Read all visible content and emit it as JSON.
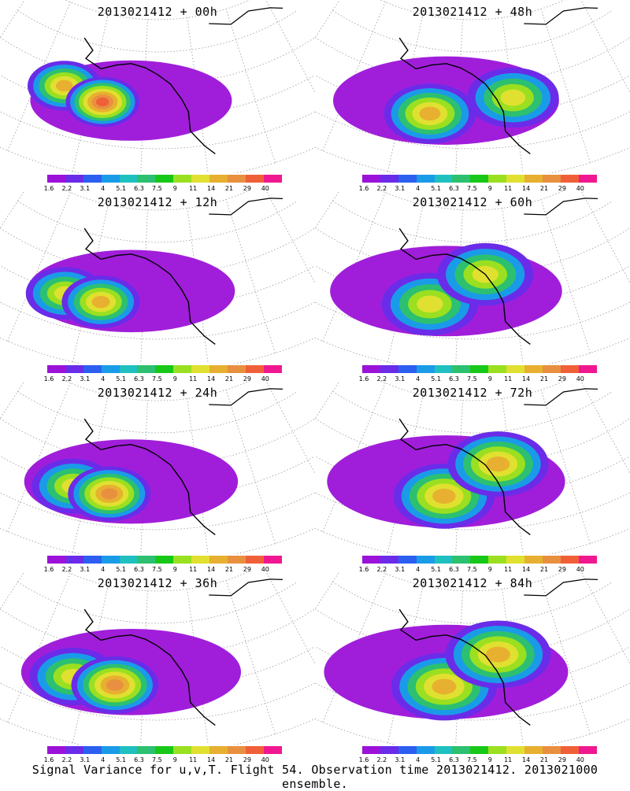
{
  "chart_data": [
    {
      "type": "heatmap",
      "title": "2013021412 + 00h",
      "lead_hours": 0,
      "colorbar_levels": [
        "1.6",
        "2.2",
        "3.1",
        "4",
        "5.1",
        "6.3",
        "7.5",
        "9",
        "11",
        "14",
        "21",
        "29",
        "40"
      ],
      "blobs": [
        {
          "lon": -170,
          "lat": 50,
          "value": 21
        },
        {
          "lon": -155,
          "lat": 48,
          "value": 40
        }
      ]
    },
    {
      "type": "heatmap",
      "title": "2013021412 + 48h",
      "lead_hours": 48,
      "colorbar_levels": [
        "1.6",
        "2.2",
        "3.1",
        "4",
        "5.1",
        "6.3",
        "7.5",
        "9",
        "11",
        "14",
        "21",
        "29",
        "40"
      ],
      "blobs": [
        {
          "lon": -150,
          "lat": 45,
          "value": 21
        },
        {
          "lon": -120,
          "lat": 50,
          "value": 14
        }
      ]
    },
    {
      "type": "heatmap",
      "title": "2013021412 + 12h",
      "lead_hours": 12,
      "colorbar_levels": [
        "1.6",
        "2.2",
        "3.1",
        "4",
        "5.1",
        "6.3",
        "7.5",
        "9",
        "11",
        "14",
        "21",
        "29",
        "40"
      ],
      "blobs": [
        {
          "lon": -168,
          "lat": 45,
          "value": 14
        },
        {
          "lon": -155,
          "lat": 45,
          "value": 21
        }
      ]
    },
    {
      "type": "heatmap",
      "title": "2013021412 + 60h",
      "lead_hours": 60,
      "colorbar_levels": [
        "1.6",
        "2.2",
        "3.1",
        "4",
        "5.1",
        "6.3",
        "7.5",
        "9",
        "11",
        "14",
        "21",
        "29",
        "40"
      ],
      "blobs": [
        {
          "lon": -150,
          "lat": 45,
          "value": 14
        },
        {
          "lon": -130,
          "lat": 55,
          "value": 14
        }
      ]
    },
    {
      "type": "heatmap",
      "title": "2013021412 + 24h",
      "lead_hours": 24,
      "colorbar_levels": [
        "1.6",
        "2.2",
        "3.1",
        "4",
        "5.1",
        "6.3",
        "7.5",
        "9",
        "11",
        "14",
        "21",
        "29",
        "40"
      ],
      "blobs": [
        {
          "lon": -165,
          "lat": 45,
          "value": 14
        },
        {
          "lon": -152,
          "lat": 45,
          "value": 29
        }
      ]
    },
    {
      "type": "heatmap",
      "title": "2013021412 + 72h",
      "lead_hours": 72,
      "colorbar_levels": [
        "1.6",
        "2.2",
        "3.1",
        "4",
        "5.1",
        "6.3",
        "7.5",
        "9",
        "11",
        "14",
        "21",
        "29",
        "40"
      ],
      "blobs": [
        {
          "lon": -145,
          "lat": 45,
          "value": 21
        },
        {
          "lon": -125,
          "lat": 55,
          "value": 21
        }
      ]
    },
    {
      "type": "heatmap",
      "title": "2013021412 + 36h",
      "lead_hours": 36,
      "colorbar_levels": [
        "1.6",
        "2.2",
        "3.1",
        "4",
        "5.1",
        "6.3",
        "7.5",
        "9",
        "11",
        "14",
        "21",
        "29",
        "40"
      ],
      "blobs": [
        {
          "lon": -165,
          "lat": 45,
          "value": 14
        },
        {
          "lon": -150,
          "lat": 45,
          "value": 29
        }
      ]
    },
    {
      "type": "heatmap",
      "title": "2013021412 + 84h",
      "lead_hours": 84,
      "colorbar_levels": [
        "1.6",
        "2.2",
        "3.1",
        "4",
        "5.1",
        "6.3",
        "7.5",
        "9",
        "11",
        "14",
        "21",
        "29",
        "40"
      ],
      "blobs": [
        {
          "lon": -145,
          "lat": 45,
          "value": 21
        },
        {
          "lon": -125,
          "lat": 55,
          "value": 21
        }
      ]
    }
  ],
  "colorbar_colors": [
    "#9b12d8",
    "#6a2ce8",
    "#2c5ff0",
    "#1a9be8",
    "#20c0c0",
    "#2cc070",
    "#18c818",
    "#9ae020",
    "#e0e030",
    "#e8b030",
    "#e89040",
    "#f06038",
    "#f01890"
  ],
  "footer": "Signal Variance for u,v,T. Flight 54. Observation time 2013021412. 2013021000 ensemble."
}
